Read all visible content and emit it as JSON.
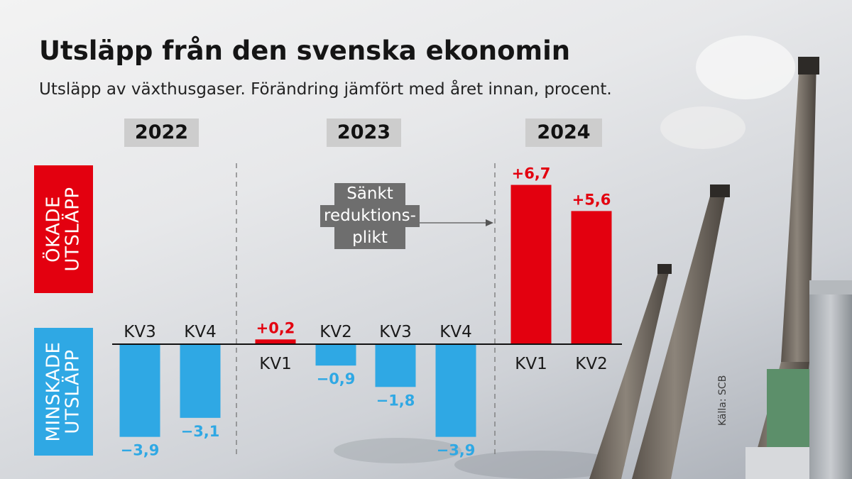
{
  "title": "Utsläpp från den svenska ekonomin",
  "subtitle": "Utsläpp av växthusgaser. Förändring jämfört med året innan, procent.",
  "side_labels": {
    "increase": [
      "ÖKADE",
      "UTSLÄPP"
    ],
    "decrease": [
      "MINSKADE",
      "UTSLÄPP"
    ]
  },
  "annotation": [
    "Sänkt",
    "reduktions-",
    "plikt"
  ],
  "source": "Källa: SCB",
  "colors": {
    "increase": "#e3000f",
    "decrease": "#2fa8e4",
    "year_box": "#cdcdcd",
    "annotation_box": "#6e6e6e"
  },
  "chart_data": {
    "type": "bar",
    "groups": [
      "2022",
      "2023",
      "2024"
    ],
    "categories": [
      "KV3",
      "KV4",
      "KV1",
      "KV2",
      "KV3",
      "KV4",
      "KV1",
      "KV2"
    ],
    "category_group": [
      "2022",
      "2022",
      "2023",
      "2023",
      "2023",
      "2023",
      "2024",
      "2024"
    ],
    "values": [
      -3.9,
      -3.1,
      0.2,
      -0.9,
      -1.8,
      -3.9,
      6.7,
      5.6
    ],
    "value_labels": [
      "−3,9",
      "−3,1",
      "+0,2",
      "−0,9",
      "−1,8",
      "−3,9",
      "+6,7",
      "+5,6"
    ],
    "ylim": [
      -3.9,
      6.7
    ]
  }
}
